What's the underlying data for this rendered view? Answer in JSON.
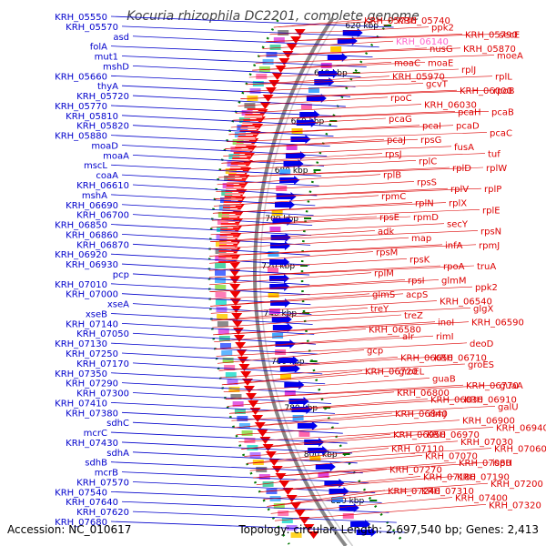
{
  "title": "Kocuria rhizophila DC2201, complete genome",
  "accession": "Accession: NC_010617",
  "topology": "Topology: circular; Length: 2,697,540 bp; Genes: 2,413",
  "scale_labels": [
    "620 kbp",
    "640 kbp",
    "660 kbp",
    "680 kbp",
    "700 kbp",
    "720 kbp",
    "740 kbp",
    "760 kbp",
    "780 kbp",
    "800 kbp",
    "820 kbp"
  ],
  "colors": {
    "left_labels": "#0000cc",
    "right_labels": "#dd0000",
    "pink_label": "#ff66cc",
    "backbone": "#888888",
    "tick_green": "#007700"
  },
  "left_labels": [
    "KRH_05550",
    "KRH_05570",
    "asd",
    "folA",
    "mut1",
    "mshD",
    "KRH_05660",
    "thyA",
    "KRH_05720",
    "KRH_05770",
    "KRH_05810",
    "KRH_05820",
    "KRH_05880",
    "moaD",
    "moaA",
    "mscL",
    "coaA",
    "KRH_06610",
    "mshA",
    "KRH_06690",
    "KRH_06700",
    "KRH_06850",
    "KRH_06860",
    "KRH_06870",
    "KRH_06920",
    "KRH_06930",
    "pcp",
    "KRH_07010",
    "KRH_07000",
    "xseA",
    "xseB",
    "KRH_07140",
    "KRH_07050",
    "KRH_07130",
    "KRH_07250",
    "KRH_07170",
    "KRH_07350",
    "KRH_07290",
    "KRH_07300",
    "KRH_07410",
    "KRH_07380",
    "sdhC",
    "mcrC",
    "KRH_07430",
    "sdhA",
    "sdhB",
    "mcrB",
    "KRH_07570",
    "KRH_07540",
    "KRH_07640",
    "KRH_07620",
    "KRH_07680"
  ],
  "right_labels": [
    "KRH_05730",
    "KRH_05740",
    "ppk2",
    "KRH_05790",
    "secE",
    "KRH_06140",
    "nusG",
    "KRH_05870",
    "moeA",
    "moaC",
    "moaE",
    "rplJ",
    "rplL",
    "KRH_05970",
    "gcvT",
    "KRH_06000",
    "rpoB",
    "rpoC",
    "KRH_06030",
    "pcaH",
    "pcaB",
    "pcaG",
    "pcaI",
    "pcaD",
    "pcaC",
    "pcaJ",
    "rpsG",
    "fusA",
    "tuf",
    "rpsJ",
    "rplC",
    "rplD",
    "rplW",
    "rplB",
    "rpsS",
    "rplV",
    "rplP",
    "rpmC",
    "rplN",
    "rplX",
    "rplE",
    "rpsE",
    "rpmD",
    "secY",
    "rpsN",
    "adk",
    "map",
    "infA",
    "rpmJ",
    "rpsM",
    "rpsK",
    "rpoA",
    "truA",
    "rplM",
    "rpsI",
    "glmM",
    "ppk2",
    "glmS",
    "acpS",
    "KRH_06540",
    "glgX",
    "treY",
    "treZ",
    "inoI",
    "KRH_06590",
    "KRH_06580",
    "alr",
    "rimI",
    "deoD",
    "gcp",
    "KRH_06650",
    "KRH_06710",
    "groES",
    "KRH_06720",
    "groEL",
    "guaB",
    "KRH_06770",
    "guaA",
    "KRH_06800",
    "KRH_06830",
    "KRH_06910",
    "galU",
    "KRH_06840",
    "rimJ",
    "KRH_06900",
    "KRH_06940",
    "KRH_06950",
    "KRH_06970",
    "KRH_07030",
    "KRH_07060",
    "KRH_07110",
    "KRH_07070",
    "KRH_07080",
    "ispH",
    "KRH_07270",
    "KRH_07180",
    "KRH_07190",
    "KRH_07200",
    "KRH_07240",
    "KRH_07310",
    "KRH_07400",
    "KRH_07320"
  ]
}
